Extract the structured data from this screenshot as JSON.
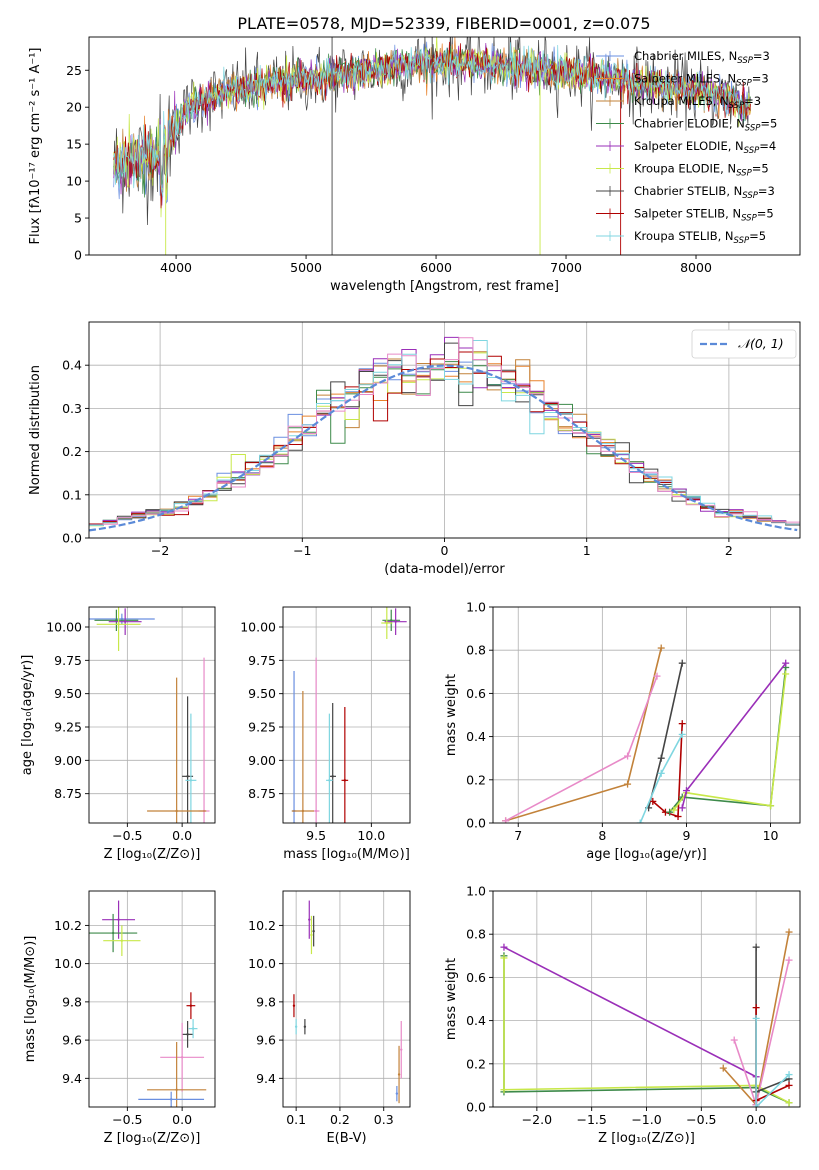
{
  "figure_title": "PLATE=0578, MJD=52339, FIBERID=0001, z=0.075",
  "colors": {
    "Chabrier MILES": "#6a8fe0",
    "Salpeter MILES": "#e8822c",
    "Kroupa MILES": "#c2823a",
    "Chabrier ELODIE": "#3d8a4a",
    "Salpeter ELODIE": "#9a2fb8",
    "Kroupa ELODIE": "#c8e84a",
    "Chabrier STELIB": "#444444",
    "Salpeter STELIB": "#b00000",
    "Kroupa STELIB": "#7fd6e0",
    "pink": "#e88ac8",
    "gauss": "#5b8ad8"
  },
  "chart_data": [
    {
      "id": "spectrum",
      "type": "line",
      "xlabel": "wavelength [Angstrom, rest frame]",
      "ylabel": "Flux [fλ10⁻¹⁷ erg cm⁻² s⁻¹ A⁻¹]",
      "xlim": [
        3330,
        8800
      ],
      "ylim": [
        0,
        29.5
      ],
      "xticks": [
        4000,
        5000,
        6000,
        7000,
        8000
      ],
      "yticks": [
        0,
        5,
        10,
        15,
        20,
        25
      ],
      "legend_position": "right",
      "legend": [
        {
          "label": "Chabrier MILES, N",
          "sub": "SSP",
          "suffix": "=3",
          "color_key": "Chabrier MILES"
        },
        {
          "label": "Salpeter MILES, N",
          "sub": "SSP",
          "suffix": "=3",
          "color_key": "Salpeter MILES"
        },
        {
          "label": "Kroupa MILES, N",
          "sub": "SSP",
          "suffix": "=3",
          "color_key": "Kroupa MILES"
        },
        {
          "label": "Chabrier ELODIE, N",
          "sub": "SSP",
          "suffix": "=5",
          "color_key": "Chabrier ELODIE"
        },
        {
          "label": "Salpeter ELODIE, N",
          "sub": "SSP",
          "suffix": "=4",
          "color_key": "Salpeter ELODIE"
        },
        {
          "label": "Kroupa ELODIE, N",
          "sub": "SSP",
          "suffix": "=5",
          "color_key": "Kroupa ELODIE"
        },
        {
          "label": "Chabrier STELIB, N",
          "sub": "SSP",
          "suffix": "=3",
          "color_key": "Chabrier STELIB"
        },
        {
          "label": "Salpeter STELIB, N",
          "sub": "SSP",
          "suffix": "=5",
          "color_key": "Salpeter STELIB"
        },
        {
          "label": "Kroupa STELIB, N",
          "sub": "SSP",
          "suffix": "=5",
          "color_key": "Kroupa STELIB"
        }
      ],
      "continuum": [
        [
          3520,
          12
        ],
        [
          3600,
          13
        ],
        [
          3700,
          12.5
        ],
        [
          3800,
          13.5
        ],
        [
          3900,
          15
        ],
        [
          4000,
          17.5
        ],
        [
          4100,
          20
        ],
        [
          4200,
          21
        ],
        [
          4300,
          21.5
        ],
        [
          4500,
          22.5
        ],
        [
          4700,
          23
        ],
        [
          4900,
          23.5
        ],
        [
          5100,
          24
        ],
        [
          5300,
          24.5
        ],
        [
          5500,
          25
        ],
        [
          5700,
          25.5
        ],
        [
          5900,
          26
        ],
        [
          6100,
          26
        ],
        [
          6300,
          26
        ],
        [
          6500,
          25.5
        ],
        [
          6700,
          25.5
        ],
        [
          6900,
          25
        ],
        [
          7100,
          24.5
        ],
        [
          7300,
          24
        ],
        [
          7500,
          23.5
        ],
        [
          7700,
          23
        ],
        [
          7900,
          22.5
        ],
        [
          8100,
          22
        ],
        [
          8300,
          21
        ],
        [
          8420,
          20
        ]
      ]
    },
    {
      "id": "residuals",
      "type": "line",
      "xlabel": "(data-model)/error",
      "ylabel": "Normed distribution",
      "xlim": [
        -2.5,
        2.5
      ],
      "ylim": [
        0,
        0.5
      ],
      "xticks": [
        -2,
        -1,
        0,
        1,
        2
      ],
      "yticks": [
        0.0,
        0.1,
        0.2,
        0.3,
        0.4
      ],
      "gaussian_label": "𝒩(0, 1)",
      "bin_width": 0.1,
      "series_color_keys": [
        "Chabrier MILES",
        "Salpeter MILES",
        "Kroupa MILES",
        "Chabrier ELODIE",
        "Salpeter ELODIE",
        "Kroupa ELODIE",
        "Chabrier STELIB",
        "Salpeter STELIB",
        "Kroupa STELIB",
        "pink"
      ]
    },
    {
      "id": "age_vs_Z",
      "type": "scatter",
      "xlabel": "Z [log₁₀(Z/Z⊙)]",
      "ylabel": "age  [log₁₀(age/yr)]",
      "xlim": [
        -0.85,
        0.3
      ],
      "ylim": [
        8.53,
        10.15
      ],
      "xticks": [
        -0.5,
        0.0
      ],
      "yticks": [
        8.75,
        9.0,
        9.25,
        9.5,
        9.75,
        10.0
      ],
      "points": [
        {
          "x": -0.55,
          "y": 10.06,
          "ex": 0.3,
          "ey": 0.04,
          "color_key": "Chabrier MILES"
        },
        {
          "x": -0.6,
          "y": 10.05,
          "ex": 0.2,
          "ey": 0.08,
          "color_key": "Chabrier ELODIE"
        },
        {
          "x": -0.52,
          "y": 10.04,
          "ex": 0.15,
          "ey": 0.1,
          "color_key": "Salpeter ELODIE"
        },
        {
          "x": -0.58,
          "y": 10.02,
          "ex": 0.2,
          "ey": 0.2,
          "color_key": "Kroupa ELODIE"
        },
        {
          "x": 0.05,
          "y": 8.88,
          "ex": 0.05,
          "ey": 0.6,
          "color_key": "Chabrier STELIB"
        },
        {
          "x": 0.08,
          "y": 8.85,
          "ex": 0.05,
          "ey": 0.5,
          "color_key": "Kroupa STELIB"
        },
        {
          "x": 0.2,
          "y": 8.62,
          "ex": 0.05,
          "ey": 1.15,
          "color_key": "pink"
        },
        {
          "x": -0.05,
          "y": 8.62,
          "ex": 0.27,
          "ey": 1.0,
          "color_key": "Kroupa MILES"
        }
      ]
    },
    {
      "id": "age_vs_mass",
      "type": "scatter",
      "xlabel": "mass [log₁₀(M/M⊙)]",
      "ylabel": "",
      "xlim": [
        9.2,
        10.35
      ],
      "ylim": [
        8.53,
        10.15
      ],
      "xticks": [
        9.5,
        10.0
      ],
      "yticks": [
        8.75,
        9.0,
        9.25,
        9.5,
        9.75,
        10.0
      ],
      "points": [
        {
          "x": 10.18,
          "y": 10.05,
          "ex": 0.08,
          "ey": 0.08,
          "color_key": "Chabrier ELODIE"
        },
        {
          "x": 10.22,
          "y": 10.04,
          "ex": 0.1,
          "ey": 0.1,
          "color_key": "Salpeter ELODIE"
        },
        {
          "x": 10.14,
          "y": 10.03,
          "ex": 0.05,
          "ey": 0.12,
          "color_key": "Kroupa ELODIE"
        },
        {
          "x": 9.65,
          "y": 8.88,
          "ex": 0.03,
          "ey": 0.55,
          "color_key": "Chabrier STELIB"
        },
        {
          "x": 9.62,
          "y": 8.85,
          "ex": 0.03,
          "ey": 0.5,
          "color_key": "Kroupa STELIB"
        },
        {
          "x": 9.76,
          "y": 8.85,
          "ex": 0.03,
          "ey": 0.55,
          "color_key": "Salpeter STELIB"
        },
        {
          "x": 9.5,
          "y": 8.62,
          "ex": 0.03,
          "ey": 1.15,
          "color_key": "pink"
        },
        {
          "x": 9.3,
          "y": 8.62,
          "ex": 0.02,
          "ey": 1.05,
          "color_key": "Chabrier MILES"
        },
        {
          "x": 9.38,
          "y": 8.62,
          "ex": 0.1,
          "ey": 0.9,
          "color_key": "Kroupa MILES"
        }
      ]
    },
    {
      "id": "massweight_vs_age",
      "type": "line",
      "xlabel": "age  [log₁₀(age/yr)]",
      "ylabel": "mass weight",
      "xlim": [
        6.7,
        10.35
      ],
      "ylim": [
        0,
        1.0
      ],
      "xticks": [
        7,
        8,
        9,
        10
      ],
      "yticks": [
        0.0,
        0.2,
        0.4,
        0.6,
        0.8,
        1.0
      ],
      "series": [
        {
          "color_key": "Kroupa MILES",
          "x": [
            6.85,
            8.3,
            8.7
          ],
          "y": [
            0.01,
            0.18,
            0.81
          ]
        },
        {
          "color_key": "pink",
          "x": [
            6.85,
            8.3,
            8.65
          ],
          "y": [
            0.01,
            0.31,
            0.68
          ]
        },
        {
          "color_key": "Chabrier STELIB",
          "x": [
            8.55,
            8.7,
            8.95
          ],
          "y": [
            0.07,
            0.3,
            0.74
          ]
        },
        {
          "color_key": "Salpeter STELIB",
          "x": [
            8.6,
            8.75,
            8.9,
            8.95
          ],
          "y": [
            0.1,
            0.05,
            0.03,
            0.46
          ]
        },
        {
          "color_key": "Kroupa STELIB",
          "x": [
            8.45,
            8.7,
            8.95
          ],
          "y": [
            0.0,
            0.23,
            0.41
          ]
        },
        {
          "color_key": "Chabrier ELODIE",
          "x": [
            8.8,
            8.95,
            10.0,
            10.18
          ],
          "y": [
            0.05,
            0.12,
            0.08,
            0.72
          ]
        },
        {
          "color_key": "Kroupa ELODIE",
          "x": [
            8.85,
            9.0,
            10.0,
            10.18
          ],
          "y": [
            0.06,
            0.14,
            0.08,
            0.69
          ]
        },
        {
          "color_key": "Salpeter ELODIE",
          "x": [
            8.95,
            9.0,
            10.18
          ],
          "y": [
            0.07,
            0.15,
            0.74
          ]
        }
      ]
    },
    {
      "id": "mass_vs_Z",
      "type": "scatter",
      "xlabel": "Z [log₁₀(Z/Z⊙)]",
      "ylabel": "mass [log₁₀(M/M⊙)]",
      "xlim": [
        -0.85,
        0.3
      ],
      "ylim": [
        9.25,
        10.38
      ],
      "xticks": [
        -0.5,
        0.0
      ],
      "yticks": [
        9.4,
        9.6,
        9.8,
        10.0,
        10.2
      ],
      "points": [
        {
          "x": -0.58,
          "y": 10.23,
          "ex": 0.15,
          "ey": 0.1,
          "color_key": "Salpeter ELODIE"
        },
        {
          "x": -0.63,
          "y": 10.16,
          "ex": 0.22,
          "ey": 0.1,
          "color_key": "Chabrier ELODIE"
        },
        {
          "x": -0.55,
          "y": 10.12,
          "ex": 0.17,
          "ey": 0.08,
          "color_key": "Kroupa ELODIE"
        },
        {
          "x": 0.08,
          "y": 9.78,
          "ex": 0.04,
          "ey": 0.07,
          "color_key": "Salpeter STELIB"
        },
        {
          "x": 0.05,
          "y": 9.63,
          "ex": 0.05,
          "ey": 0.07,
          "color_key": "Chabrier STELIB"
        },
        {
          "x": 0.1,
          "y": 9.66,
          "ex": 0.04,
          "ey": 0.05,
          "color_key": "Kroupa STELIB"
        },
        {
          "x": 0.0,
          "y": 9.51,
          "ex": 0.2,
          "ey": 0.18,
          "color_key": "pink"
        },
        {
          "x": -0.05,
          "y": 9.34,
          "ex": 0.27,
          "ey": 0.25,
          "color_key": "Kroupa MILES"
        },
        {
          "x": -0.1,
          "y": 9.29,
          "ex": 0.3,
          "ey": 0.04,
          "color_key": "Chabrier MILES"
        }
      ]
    },
    {
      "id": "mass_vs_EBV",
      "type": "scatter",
      "xlabel": "E(B-V)",
      "ylabel": "",
      "xlim": [
        0.07,
        0.36
      ],
      "ylim": [
        9.25,
        10.38
      ],
      "xticks": [
        0.1,
        0.2,
        0.3
      ],
      "yticks": [
        9.4,
        9.6,
        9.8,
        10.0,
        10.2
      ],
      "points": [
        {
          "x": 0.13,
          "y": 10.23,
          "ex": 0,
          "ey": 0.1,
          "color_key": "Salpeter ELODIE"
        },
        {
          "x": 0.135,
          "y": 10.15,
          "ex": 0,
          "ey": 0.1,
          "color_key": "Kroupa ELODIE"
        },
        {
          "x": 0.14,
          "y": 10.17,
          "ex": 0,
          "ey": 0.08,
          "color_key": "Chabrier STELIB"
        },
        {
          "x": 0.095,
          "y": 9.78,
          "ex": 0,
          "ey": 0.06,
          "color_key": "Salpeter STELIB"
        },
        {
          "x": 0.1,
          "y": 9.67,
          "ex": 0,
          "ey": 0.04,
          "color_key": "Kroupa STELIB"
        },
        {
          "x": 0.12,
          "y": 9.67,
          "ex": 0,
          "ey": 0.04,
          "color_key": "Chabrier STELIB"
        },
        {
          "x": 0.34,
          "y": 9.55,
          "ex": 0,
          "ey": 0.15,
          "color_key": "pink"
        },
        {
          "x": 0.335,
          "y": 9.42,
          "ex": 0,
          "ey": 0.15,
          "color_key": "Kroupa MILES"
        },
        {
          "x": 0.33,
          "y": 9.32,
          "ex": 0,
          "ey": 0.04,
          "color_key": "Chabrier MILES"
        }
      ]
    },
    {
      "id": "massweight_vs_Z",
      "type": "line",
      "xlabel": "Z [log₁₀(Z/Z⊙)]",
      "ylabel": "mass weight",
      "xlim": [
        -2.4,
        0.4
      ],
      "ylim": [
        0,
        1.0
      ],
      "xticks": [
        -2.0,
        -1.5,
        -1.0,
        -0.5,
        0.0
      ],
      "yticks": [
        0.0,
        0.2,
        0.4,
        0.6,
        0.8,
        1.0
      ],
      "series": [
        {
          "color_key": "Salpeter ELODIE",
          "x": [
            -2.3,
            0.0,
            0.0
          ],
          "y": [
            0.74,
            0.14,
            0.01
          ]
        },
        {
          "color_key": "Chabrier ELODIE",
          "x": [
            -2.3,
            -2.3,
            0.0,
            0.3
          ],
          "y": [
            0.7,
            0.07,
            0.09,
            0.02
          ]
        },
        {
          "color_key": "Kroupa ELODIE",
          "x": [
            -2.3,
            -2.3,
            0.0,
            0.3
          ],
          "y": [
            0.69,
            0.08,
            0.1,
            0.02
          ]
        },
        {
          "color_key": "Kroupa MILES",
          "x": [
            -0.3,
            0.0,
            0.3
          ],
          "y": [
            0.18,
            0.01,
            0.81
          ]
        },
        {
          "color_key": "pink",
          "x": [
            -0.2,
            0.0,
            0.3
          ],
          "y": [
            0.31,
            0.01,
            0.68
          ]
        },
        {
          "color_key": "Chabrier STELIB",
          "x": [
            0.0,
            0.0,
            0.3
          ],
          "y": [
            0.74,
            0.07,
            0.13
          ]
        },
        {
          "color_key": "Salpeter STELIB",
          "x": [
            0.0,
            0.0,
            0.3
          ],
          "y": [
            0.46,
            0.03,
            0.1
          ]
        },
        {
          "color_key": "Kroupa STELIB",
          "x": [
            0.0,
            0.0,
            0.3
          ],
          "y": [
            0.41,
            0.0,
            0.15
          ]
        }
      ]
    }
  ]
}
